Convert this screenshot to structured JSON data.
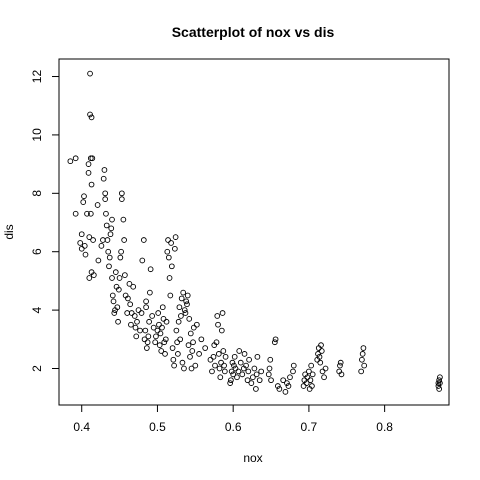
{
  "chart_data": {
    "type": "scatter",
    "title": "Scatterplot of nox vs dis",
    "xlabel": "nox",
    "ylabel": "dis",
    "xlim": [
      0.37,
      0.885
    ],
    "ylim": [
      0.75,
      12.6
    ],
    "xticks": [
      0.4,
      0.5,
      0.6,
      0.7,
      0.8
    ],
    "xtick_labels": [
      "0.4",
      "0.5",
      "0.6",
      "0.7",
      "0.8"
    ],
    "yticks": [
      2,
      4,
      6,
      8,
      10,
      12
    ],
    "ytick_labels": [
      "2",
      "4",
      "6",
      "8",
      "10",
      "12"
    ],
    "grid": false,
    "marker": "open-circle",
    "color": "#000000",
    "points": [
      [
        0.385,
        9.1
      ],
      [
        0.392,
        9.2
      ],
      [
        0.392,
        7.3
      ],
      [
        0.398,
        6.3
      ],
      [
        0.4,
        6.1
      ],
      [
        0.4,
        6.6
      ],
      [
        0.402,
        7.7
      ],
      [
        0.403,
        7.9
      ],
      [
        0.404,
        6.2
      ],
      [
        0.405,
        5.9
      ],
      [
        0.407,
        7.3
      ],
      [
        0.409,
        8.7
      ],
      [
        0.409,
        9.0
      ],
      [
        0.411,
        12.1
      ],
      [
        0.411,
        10.7
      ],
      [
        0.413,
        10.6
      ],
      [
        0.412,
        9.2
      ],
      [
        0.414,
        9.2
      ],
      [
        0.41,
        6.5
      ],
      [
        0.412,
        7.3
      ],
      [
        0.413,
        8.3
      ],
      [
        0.415,
        6.4
      ],
      [
        0.41,
        5.1
      ],
      [
        0.413,
        5.3
      ],
      [
        0.416,
        5.2
      ],
      [
        0.421,
        7.6
      ],
      [
        0.422,
        5.7
      ],
      [
        0.426,
        6.2
      ],
      [
        0.428,
        6.4
      ],
      [
        0.429,
        8.5
      ],
      [
        0.43,
        8.8
      ],
      [
        0.431,
        8.0
      ],
      [
        0.431,
        7.8
      ],
      [
        0.432,
        7.3
      ],
      [
        0.433,
        6.9
      ],
      [
        0.434,
        6.4
      ],
      [
        0.435,
        6.0
      ],
      [
        0.436,
        5.5
      ],
      [
        0.437,
        5.8
      ],
      [
        0.438,
        6.6
      ],
      [
        0.439,
        6.8
      ],
      [
        0.44,
        7.1
      ],
      [
        0.44,
        5.1
      ],
      [
        0.441,
        4.5
      ],
      [
        0.442,
        4.3
      ],
      [
        0.443,
        3.9
      ],
      [
        0.444,
        4.0
      ],
      [
        0.445,
        5.3
      ],
      [
        0.446,
        4.8
      ],
      [
        0.447,
        4.1
      ],
      [
        0.448,
        3.6
      ],
      [
        0.449,
        4.7
      ],
      [
        0.45,
        5.1
      ],
      [
        0.451,
        5.8
      ],
      [
        0.452,
        6.0
      ],
      [
        0.453,
        7.8
      ],
      [
        0.453,
        8.0
      ],
      [
        0.455,
        7.1
      ],
      [
        0.456,
        6.4
      ],
      [
        0.457,
        5.2
      ],
      [
        0.458,
        4.5
      ],
      [
        0.46,
        3.9
      ],
      [
        0.461,
        4.4
      ],
      [
        0.463,
        4.9
      ],
      [
        0.464,
        4.2
      ],
      [
        0.465,
        3.5
      ],
      [
        0.466,
        3.9
      ],
      [
        0.468,
        4.8
      ],
      [
        0.47,
        3.8
      ],
      [
        0.471,
        3.4
      ],
      [
        0.472,
        3.1
      ],
      [
        0.473,
        3.6
      ],
      [
        0.475,
        4.0
      ],
      [
        0.477,
        3.3
      ],
      [
        0.479,
        3.9
      ],
      [
        0.48,
        5.7
      ],
      [
        0.482,
        6.4
      ],
      [
        0.483,
        3.0
      ],
      [
        0.484,
        3.3
      ],
      [
        0.485,
        4.1
      ],
      [
        0.485,
        4.3
      ],
      [
        0.486,
        2.7
      ],
      [
        0.487,
        2.9
      ],
      [
        0.488,
        3.1
      ],
      [
        0.489,
        3.6
      ],
      [
        0.49,
        4.6
      ],
      [
        0.491,
        5.4
      ],
      [
        0.493,
        3.8
      ],
      [
        0.495,
        3.4
      ],
      [
        0.497,
        2.9
      ],
      [
        0.498,
        3.1
      ],
      [
        0.5,
        3.3
      ],
      [
        0.501,
        3.9
      ],
      [
        0.502,
        3.5
      ],
      [
        0.503,
        2.8
      ],
      [
        0.504,
        3.2
      ],
      [
        0.505,
        2.6
      ],
      [
        0.506,
        3.4
      ],
      [
        0.507,
        4.1
      ],
      [
        0.508,
        3.7
      ],
      [
        0.509,
        2.9
      ],
      [
        0.51,
        2.5
      ],
      [
        0.511,
        3.0
      ],
      [
        0.512,
        3.6
      ],
      [
        0.513,
        6.0
      ],
      [
        0.514,
        6.4
      ],
      [
        0.515,
        5.8
      ],
      [
        0.516,
        5.1
      ],
      [
        0.517,
        4.5
      ],
      [
        0.518,
        6.3
      ],
      [
        0.519,
        5.5
      ],
      [
        0.52,
        2.7
      ],
      [
        0.521,
        2.3
      ],
      [
        0.522,
        2.1
      ],
      [
        0.523,
        6.1
      ],
      [
        0.524,
        6.5
      ],
      [
        0.525,
        3.3
      ],
      [
        0.526,
        2.9
      ],
      [
        0.527,
        2.5
      ],
      [
        0.528,
        3.6
      ],
      [
        0.529,
        4.1
      ],
      [
        0.53,
        3.0
      ],
      [
        0.531,
        3.8
      ],
      [
        0.532,
        4.4
      ],
      [
        0.533,
        2.2
      ],
      [
        0.534,
        4.6
      ],
      [
        0.535,
        2.0
      ],
      [
        0.536,
        4.0
      ],
      [
        0.537,
        3.9
      ],
      [
        0.538,
        4.3
      ],
      [
        0.539,
        4.2
      ],
      [
        0.54,
        4.5
      ],
      [
        0.541,
        2.8
      ],
      [
        0.542,
        3.7
      ],
      [
        0.543,
        2.4
      ],
      [
        0.544,
        3.2
      ],
      [
        0.545,
        2.0
      ],
      [
        0.546,
        2.6
      ],
      [
        0.547,
        2.9
      ],
      [
        0.548,
        3.4
      ],
      [
        0.55,
        2.1
      ],
      [
        0.552,
        3.5
      ],
      [
        0.555,
        2.5
      ],
      [
        0.558,
        3.0
      ],
      [
        0.563,
        2.7
      ],
      [
        0.57,
        2.3
      ],
      [
        0.572,
        1.9
      ],
      [
        0.574,
        2.4
      ],
      [
        0.575,
        2.8
      ],
      [
        0.576,
        2.1
      ],
      [
        0.578,
        2.9
      ],
      [
        0.579,
        3.8
      ],
      [
        0.58,
        3.5
      ],
      [
        0.581,
        2.5
      ],
      [
        0.582,
        2.0
      ],
      [
        0.583,
        1.7
      ],
      [
        0.584,
        2.2
      ],
      [
        0.585,
        3.3
      ],
      [
        0.586,
        3.9
      ],
      [
        0.587,
        2.6
      ],
      [
        0.588,
        2.1
      ],
      [
        0.589,
        1.9
      ],
      [
        0.59,
        2.4
      ],
      [
        0.596,
        1.5
      ],
      [
        0.597,
        1.6
      ],
      [
        0.598,
        1.9
      ],
      [
        0.599,
        2.2
      ],
      [
        0.6,
        1.8
      ],
      [
        0.601,
        2.1
      ],
      [
        0.602,
        2.4
      ],
      [
        0.603,
        2.0
      ],
      [
        0.605,
        1.7
      ],
      [
        0.607,
        1.9
      ],
      [
        0.608,
        2.6
      ],
      [
        0.61,
        2.2
      ],
      [
        0.612,
        1.8
      ],
      [
        0.614,
        2.0
      ],
      [
        0.615,
        2.5
      ],
      [
        0.617,
        2.1
      ],
      [
        0.619,
        1.6
      ],
      [
        0.62,
        1.9
      ],
      [
        0.621,
        2.3
      ],
      [
        0.624,
        1.5
      ],
      [
        0.626,
        1.7
      ],
      [
        0.628,
        2.0
      ],
      [
        0.63,
        1.3
      ],
      [
        0.631,
        1.8
      ],
      [
        0.632,
        2.4
      ],
      [
        0.635,
        1.6
      ],
      [
        0.637,
        1.9
      ],
      [
        0.647,
        1.8
      ],
      [
        0.648,
        2.0
      ],
      [
        0.649,
        2.3
      ],
      [
        0.65,
        1.6
      ],
      [
        0.655,
        2.9
      ],
      [
        0.656,
        3.0
      ],
      [
        0.659,
        1.4
      ],
      [
        0.661,
        1.3
      ],
      [
        0.666,
        1.6
      ],
      [
        0.669,
        1.2
      ],
      [
        0.671,
        1.5
      ],
      [
        0.673,
        1.4
      ],
      [
        0.675,
        1.7
      ],
      [
        0.679,
        1.9
      ],
      [
        0.68,
        2.1
      ],
      [
        0.693,
        1.4
      ],
      [
        0.694,
        1.6
      ],
      [
        0.695,
        1.8
      ],
      [
        0.697,
        1.5
      ],
      [
        0.698,
        1.7
      ],
      [
        0.7,
        1.9
      ],
      [
        0.701,
        1.3
      ],
      [
        0.702,
        1.6
      ],
      [
        0.703,
        2.1
      ],
      [
        0.704,
        1.4
      ],
      [
        0.705,
        1.8
      ],
      [
        0.711,
        2.3
      ],
      [
        0.712,
        2.5
      ],
      [
        0.713,
        2.7
      ],
      [
        0.714,
        2.4
      ],
      [
        0.715,
        2.2
      ],
      [
        0.716,
        2.8
      ],
      [
        0.717,
        2.6
      ],
      [
        0.718,
        1.9
      ],
      [
        0.72,
        1.7
      ],
      [
        0.722,
        2.0
      ],
      [
        0.74,
        1.9
      ],
      [
        0.741,
        2.1
      ],
      [
        0.742,
        2.2
      ],
      [
        0.743,
        1.8
      ],
      [
        0.769,
        1.9
      ],
      [
        0.77,
        2.3
      ],
      [
        0.771,
        2.5
      ],
      [
        0.772,
        2.7
      ],
      [
        0.773,
        2.1
      ],
      [
        0.871,
        1.4
      ],
      [
        0.871,
        1.5
      ],
      [
        0.872,
        1.6
      ],
      [
        0.872,
        1.3
      ],
      [
        0.873,
        1.7
      ],
      [
        0.873,
        1.5
      ]
    ]
  }
}
